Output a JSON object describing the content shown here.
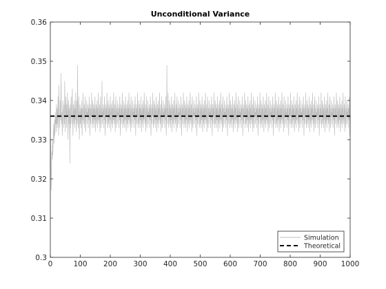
{
  "chart_data": {
    "type": "line",
    "title": "Unconditional Variance",
    "xlabel": "",
    "ylabel": "",
    "xlim": [
      0,
      1000
    ],
    "ylim": [
      0.3,
      0.36
    ],
    "xticks": [
      0,
      100,
      200,
      300,
      400,
      500,
      600,
      700,
      800,
      900,
      1000
    ],
    "xtick_labels": [
      "0",
      "100",
      "200",
      "300",
      "400",
      "500",
      "600",
      "700",
      "800",
      "900",
      "1000"
    ],
    "yticks": [
      0.3,
      0.31,
      0.32,
      0.33,
      0.34,
      0.35,
      0.36
    ],
    "ytick_labels": [
      "0.3",
      "0.31",
      "0.32",
      "0.33",
      "0.34",
      "0.35",
      "0.36"
    ],
    "grid": false,
    "legend_position": "bottom-right",
    "series": [
      {
        "name": "Simulation",
        "style": "solid",
        "color": "#bdbdbd",
        "x_start": 1,
        "x_step": 1,
        "values": [
          0.33,
          0.324,
          0.317,
          0.323,
          0.327,
          0.325,
          0.33,
          0.326,
          0.328,
          0.331,
          0.334,
          0.329,
          0.332,
          0.335,
          0.331,
          0.337,
          0.334,
          0.336,
          0.332,
          0.339,
          0.334,
          0.338,
          0.333,
          0.336,
          0.341,
          0.335,
          0.331,
          0.344,
          0.338,
          0.336,
          0.333,
          0.337,
          0.34,
          0.335,
          0.347,
          0.339,
          0.334,
          0.337,
          0.331,
          0.336,
          0.34,
          0.337,
          0.333,
          0.336,
          0.339,
          0.334,
          0.345,
          0.338,
          0.332,
          0.336,
          0.341,
          0.337,
          0.333,
          0.339,
          0.336,
          0.342,
          0.335,
          0.33,
          0.337,
          0.34,
          0.334,
          0.338,
          0.336,
          0.324,
          0.339,
          0.333,
          0.337,
          0.341,
          0.336,
          0.334,
          0.338,
          0.343,
          0.335,
          0.331,
          0.337,
          0.339,
          0.334,
          0.336,
          0.34,
          0.333,
          0.338,
          0.335,
          0.342,
          0.336,
          0.332,
          0.337,
          0.34,
          0.334,
          0.349,
          0.338,
          0.333,
          0.336,
          0.341,
          0.335,
          0.33,
          0.337,
          0.339,
          0.334,
          0.336,
          0.338,
          0.333,
          0.34,
          0.336,
          0.331,
          0.338,
          0.335,
          0.342,
          0.337,
          0.334,
          0.336,
          0.339,
          0.333,
          0.337,
          0.341,
          0.335,
          0.332,
          0.338,
          0.336,
          0.34,
          0.334,
          0.337,
          0.336,
          0.339,
          0.333,
          0.338,
          0.335,
          0.341,
          0.337,
          0.331,
          0.336,
          0.339,
          0.334,
          0.338,
          0.336,
          0.342,
          0.335,
          0.333,
          0.337,
          0.34,
          0.334,
          0.336,
          0.339,
          0.333,
          0.338,
          0.335,
          0.341,
          0.336,
          0.332,
          0.337,
          0.339,
          0.334,
          0.336,
          0.34,
          0.333,
          0.338,
          0.335,
          0.342,
          0.337,
          0.334,
          0.336,
          0.339,
          0.332,
          0.337,
          0.341,
          0.335,
          0.333,
          0.338,
          0.336,
          0.345,
          0.334,
          0.337,
          0.336,
          0.339,
          0.333,
          0.338,
          0.335,
          0.341,
          0.337,
          0.331,
          0.336,
          0.339,
          0.334,
          0.338,
          0.336,
          0.342,
          0.335,
          0.333,
          0.337,
          0.34,
          0.334,
          0.336,
          0.339,
          0.333,
          0.338,
          0.335,
          0.341,
          0.336,
          0.332,
          0.337,
          0.339,
          0.334,
          0.336,
          0.34,
          0.333,
          0.338,
          0.335,
          0.342,
          0.337,
          0.334,
          0.336,
          0.339,
          0.332,
          0.337,
          0.341,
          0.335,
          0.333,
          0.338,
          0.336,
          0.34,
          0.334,
          0.337,
          0.336,
          0.339,
          0.333,
          0.338,
          0.335,
          0.341,
          0.337,
          0.331,
          0.336,
          0.339,
          0.334,
          0.338,
          0.336,
          0.342,
          0.335,
          0.333,
          0.337,
          0.34,
          0.334,
          0.336,
          0.339,
          0.333,
          0.338,
          0.335,
          0.341,
          0.336,
          0.332,
          0.337,
          0.339,
          0.334,
          0.336,
          0.34,
          0.333,
          0.338,
          0.335,
          0.342,
          0.337,
          0.334,
          0.336,
          0.339,
          0.332,
          0.337,
          0.341,
          0.335,
          0.333,
          0.338,
          0.336,
          0.34,
          0.334,
          0.337,
          0.336,
          0.339,
          0.333,
          0.338,
          0.335,
          0.341,
          0.337,
          0.331,
          0.336,
          0.339,
          0.334,
          0.338,
          0.336,
          0.342,
          0.335,
          0.333,
          0.337,
          0.34,
          0.334,
          0.336,
          0.339,
          0.333,
          0.338,
          0.335,
          0.341,
          0.336,
          0.332,
          0.337,
          0.339,
          0.334,
          0.336,
          0.34,
          0.333,
          0.338,
          0.335,
          0.342,
          0.337,
          0.334,
          0.336,
          0.339,
          0.332,
          0.337,
          0.341,
          0.335,
          0.333,
          0.338,
          0.336,
          0.34,
          0.334,
          0.337,
          0.336,
          0.339,
          0.333,
          0.338,
          0.335,
          0.341,
          0.337,
          0.331,
          0.336,
          0.339,
          0.334,
          0.338,
          0.336,
          0.342,
          0.335,
          0.333,
          0.337,
          0.34,
          0.334,
          0.336,
          0.339,
          0.333,
          0.338,
          0.335,
          0.341,
          0.336,
          0.332,
          0.337,
          0.339,
          0.334,
          0.336,
          0.34,
          0.333,
          0.338,
          0.335,
          0.342,
          0.337,
          0.334,
          0.336,
          0.339,
          0.332,
          0.337,
          0.341,
          0.335,
          0.333,
          0.338,
          0.336,
          0.34,
          0.334,
          0.337,
          0.336,
          0.339,
          0.333,
          0.338,
          0.335,
          0.341,
          0.337,
          0.331,
          0.336,
          0.349,
          0.334,
          0.338,
          0.336,
          0.342,
          0.335,
          0.333,
          0.337,
          0.34,
          0.334,
          0.336,
          0.339,
          0.333,
          0.338,
          0.335,
          0.341,
          0.336,
          0.332,
          0.337,
          0.339,
          0.334,
          0.336,
          0.34,
          0.333,
          0.338,
          0.335,
          0.342,
          0.337,
          0.334,
          0.336,
          0.339,
          0.332,
          0.337,
          0.341,
          0.335,
          0.333,
          0.338,
          0.336,
          0.34,
          0.334,
          0.337,
          0.336,
          0.339,
          0.333,
          0.338,
          0.335,
          0.341,
          0.337,
          0.331,
          0.336,
          0.339,
          0.334,
          0.338,
          0.336,
          0.342,
          0.335,
          0.333,
          0.337,
          0.34,
          0.334,
          0.336,
          0.339,
          0.333,
          0.338,
          0.335,
          0.341,
          0.336,
          0.332,
          0.337,
          0.339,
          0.334,
          0.336,
          0.34,
          0.333,
          0.338,
          0.335,
          0.342,
          0.337,
          0.334,
          0.336,
          0.339,
          0.332,
          0.337,
          0.341,
          0.335,
          0.333,
          0.338,
          0.336,
          0.34,
          0.334,
          0.337,
          0.336,
          0.339,
          0.333,
          0.338,
          0.335,
          0.341,
          0.337,
          0.331,
          0.336,
          0.339,
          0.334,
          0.338,
          0.336,
          0.342,
          0.335,
          0.333,
          0.337,
          0.34,
          0.334,
          0.336,
          0.339,
          0.333,
          0.338,
          0.335,
          0.341,
          0.336,
          0.332,
          0.337,
          0.339,
          0.334,
          0.336,
          0.34,
          0.333,
          0.338,
          0.335,
          0.342,
          0.337,
          0.334,
          0.336,
          0.339,
          0.332,
          0.337,
          0.341,
          0.335,
          0.333,
          0.338,
          0.336,
          0.34,
          0.334,
          0.337,
          0.336,
          0.339,
          0.333,
          0.338,
          0.335,
          0.341,
          0.337,
          0.331,
          0.336,
          0.339,
          0.334,
          0.338,
          0.336,
          0.342,
          0.335,
          0.333,
          0.337,
          0.34,
          0.334,
          0.336,
          0.339,
          0.333,
          0.338,
          0.335,
          0.341,
          0.336,
          0.332,
          0.337,
          0.339,
          0.334,
          0.336,
          0.34,
          0.333,
          0.338,
          0.335,
          0.342,
          0.337,
          0.334,
          0.336,
          0.339,
          0.332,
          0.337,
          0.341,
          0.335,
          0.333,
          0.338,
          0.336,
          0.34,
          0.334,
          0.337,
          0.336,
          0.339,
          0.333,
          0.338,
          0.335,
          0.341,
          0.337,
          0.331,
          0.336,
          0.339,
          0.334,
          0.338,
          0.336,
          0.342,
          0.335,
          0.333,
          0.337,
          0.34,
          0.334,
          0.336,
          0.339,
          0.333,
          0.338,
          0.335,
          0.341,
          0.336,
          0.332,
          0.337,
          0.339,
          0.334,
          0.336,
          0.34,
          0.333,
          0.338,
          0.335,
          0.342,
          0.337,
          0.334,
          0.336,
          0.339,
          0.332,
          0.337,
          0.341,
          0.335,
          0.333,
          0.338,
          0.336,
          0.34,
          0.334,
          0.337,
          0.336,
          0.339,
          0.333,
          0.338,
          0.335,
          0.341,
          0.337,
          0.331,
          0.336,
          0.339,
          0.334,
          0.338,
          0.336,
          0.342,
          0.335,
          0.333,
          0.337,
          0.34,
          0.334,
          0.336,
          0.339,
          0.333,
          0.338,
          0.335,
          0.341,
          0.336,
          0.332,
          0.337,
          0.339,
          0.334,
          0.336,
          0.34,
          0.333,
          0.338,
          0.335,
          0.342,
          0.337,
          0.334,
          0.336,
          0.339,
          0.332,
          0.337,
          0.341,
          0.335,
          0.333,
          0.338,
          0.336,
          0.34,
          0.334,
          0.337,
          0.336,
          0.339,
          0.333,
          0.338,
          0.335,
          0.341,
          0.337,
          0.331,
          0.336,
          0.339,
          0.334,
          0.338,
          0.336,
          0.342,
          0.335,
          0.333,
          0.337,
          0.34,
          0.334,
          0.336,
          0.339,
          0.333,
          0.338,
          0.335,
          0.341,
          0.336,
          0.332,
          0.337,
          0.339,
          0.334,
          0.336,
          0.34,
          0.333,
          0.338,
          0.335,
          0.342,
          0.337,
          0.334,
          0.336,
          0.339,
          0.332,
          0.337,
          0.341,
          0.335,
          0.333,
          0.338,
          0.336,
          0.34,
          0.334,
          0.337,
          0.336,
          0.339,
          0.333,
          0.338,
          0.335,
          0.341,
          0.337,
          0.331,
          0.336,
          0.339,
          0.334,
          0.338,
          0.336,
          0.342,
          0.335,
          0.333,
          0.337,
          0.34,
          0.334,
          0.336,
          0.339,
          0.333,
          0.338,
          0.335,
          0.341,
          0.336,
          0.332,
          0.337,
          0.339,
          0.334,
          0.336,
          0.34,
          0.333,
          0.338,
          0.335,
          0.342,
          0.337,
          0.334,
          0.336,
          0.339,
          0.332,
          0.337,
          0.341,
          0.335,
          0.333,
          0.338,
          0.336,
          0.34,
          0.334,
          0.337,
          0.336,
          0.339,
          0.333,
          0.338,
          0.335,
          0.341,
          0.337,
          0.331,
          0.336,
          0.339,
          0.334,
          0.338,
          0.336,
          0.342,
          0.335,
          0.333,
          0.337,
          0.34,
          0.334,
          0.336,
          0.339,
          0.333,
          0.338,
          0.335,
          0.341,
          0.336,
          0.332,
          0.337,
          0.339,
          0.334,
          0.336,
          0.34,
          0.333,
          0.338,
          0.335,
          0.342,
          0.337,
          0.334,
          0.336,
          0.339,
          0.332,
          0.337,
          0.341,
          0.335,
          0.333,
          0.338,
          0.336,
          0.34,
          0.334,
          0.337,
          0.336,
          0.339,
          0.333,
          0.338,
          0.335,
          0.341,
          0.337,
          0.331,
          0.336,
          0.339,
          0.334,
          0.338,
          0.336,
          0.342,
          0.335,
          0.333,
          0.337,
          0.34,
          0.334,
          0.336,
          0.339,
          0.333,
          0.338,
          0.335,
          0.341,
          0.336,
          0.332,
          0.337,
          0.339,
          0.334,
          0.336,
          0.34,
          0.333,
          0.338,
          0.335,
          0.342,
          0.337,
          0.334,
          0.336,
          0.339,
          0.332,
          0.337,
          0.341,
          0.335,
          0.333,
          0.338,
          0.336,
          0.34,
          0.334,
          0.337,
          0.336,
          0.339,
          0.333,
          0.338,
          0.335,
          0.341,
          0.337,
          0.331,
          0.336,
          0.339,
          0.334,
          0.338,
          0.336,
          0.342,
          0.335,
          0.333,
          0.337,
          0.34,
          0.334,
          0.336,
          0.339,
          0.333,
          0.338,
          0.335,
          0.341,
          0.336,
          0.332,
          0.337,
          0.339,
          0.334,
          0.336,
          0.34,
          0.333,
          0.338,
          0.335,
          0.342,
          0.337,
          0.334,
          0.336,
          0.339,
          0.332,
          0.337,
          0.341,
          0.335,
          0.333,
          0.338,
          0.336,
          0.34,
          0.334,
          0.337,
          0.336,
          0.339,
          0.333,
          0.338,
          0.335,
          0.341,
          0.337,
          0.331,
          0.336,
          0.339,
          0.334,
          0.338,
          0.336,
          0.342,
          0.335,
          0.333,
          0.337,
          0.34,
          0.334,
          0.336,
          0.339,
          0.333,
          0.338,
          0.335,
          0.341,
          0.336,
          0.332,
          0.337,
          0.339,
          0.334,
          0.336,
          0.34,
          0.333,
          0.338,
          0.335,
          0.342,
          0.337,
          0.334,
          0.336,
          0.339,
          0.332,
          0.337,
          0.341,
          0.335,
          0.333,
          0.338,
          0.336,
          0.34,
          0.334,
          0.337,
          0.336,
          0.339,
          0.333,
          0.338,
          0.335,
          0.341,
          0.337,
          0.331,
          0.336
        ]
      },
      {
        "name": "Theoretical",
        "style": "dashed",
        "color": "#000000",
        "constant": 0.336
      }
    ]
  }
}
